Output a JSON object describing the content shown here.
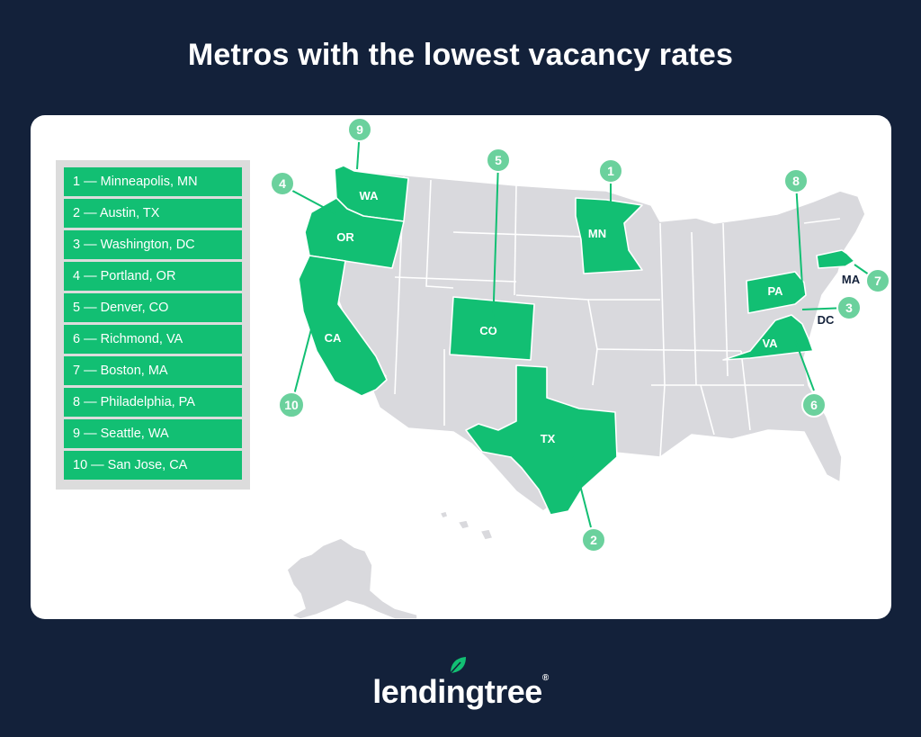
{
  "title": "Metros with the lowest vacancy rates",
  "legend": [
    "1 — Minneapolis, MN",
    "2 — Austin, TX",
    "3 — Washington, DC",
    "4 — Portland, OR",
    "5 — Denver, CO",
    "6 — Richmond, VA",
    "7 — Boston, MA",
    "8 — Philadelphia, PA",
    "9 — Seattle, WA",
    "10 — San Jose, CA"
  ],
  "states": {
    "wa": "WA",
    "or": "OR",
    "ca": "CA",
    "co": "CO",
    "tx": "TX",
    "mn": "MN",
    "pa": "PA",
    "va": "VA",
    "ma": "MA",
    "dc": "DC"
  },
  "pins": {
    "p1": "1",
    "p2": "2",
    "p3": "3",
    "p4": "4",
    "p5": "5",
    "p6": "6",
    "p7": "7",
    "p8": "8",
    "p9": "9",
    "p10": "10"
  },
  "colors": {
    "background": "#13213a",
    "highlight": "#12bf73",
    "pin": "#6bd19d",
    "state_default": "#d9d9dd"
  },
  "brand": {
    "name": "lendingtree"
  }
}
